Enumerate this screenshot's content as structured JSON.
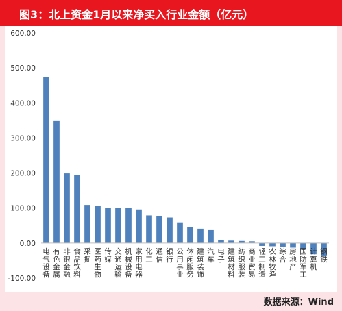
{
  "title": "图3：北上资金1月以来净买入行业金额（亿元）",
  "source": "数据来源：Wind",
  "colors": {
    "header": "#e8161f",
    "bar": "#4f81bd",
    "frame": "#fbe3e6",
    "zero_line": "#bfbfbf"
  },
  "chart_data": {
    "type": "bar",
    "ylim": [
      -100,
      600
    ],
    "yticks": [
      "600.00",
      "500.00",
      "400.00",
      "300.00",
      "200.00",
      "100.00",
      "0.00",
      "-100.00"
    ],
    "ytick_values": [
      600,
      500,
      400,
      300,
      200,
      100,
      0,
      -100
    ],
    "grid": false,
    "categories": [
      "电气设备",
      "有色金属",
      "非银金融",
      "食品饮料",
      "采掘",
      "医药生物",
      "传媒",
      "交通运输",
      "机械设备",
      "家用电器",
      "化工",
      "通信",
      "银行",
      "公用事业",
      "休闲服务",
      "建筑装饰",
      "汽车",
      "电子",
      "建筑材料",
      "纺织服装",
      "商业贸易",
      "轻工制造",
      "农林牧渔",
      "综合",
      "房地产",
      "国防军工",
      "计算机",
      "钢铁"
    ],
    "values": [
      474,
      350,
      199,
      194,
      109,
      106,
      101,
      100,
      100,
      96,
      79,
      77,
      73,
      59,
      46,
      41,
      37,
      8,
      7,
      6,
      5,
      -8,
      -9,
      -10,
      -13,
      -19,
      -32,
      -38
    ]
  }
}
